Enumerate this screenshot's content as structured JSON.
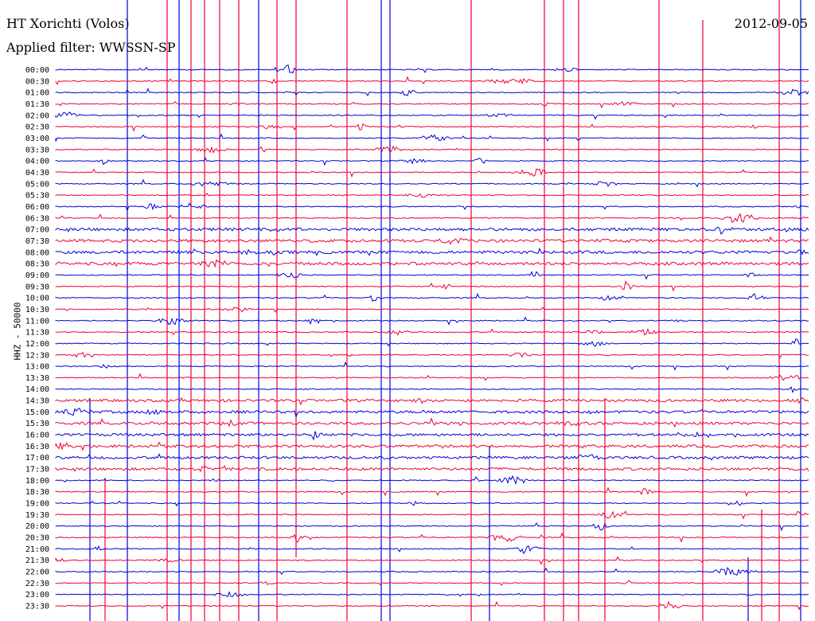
{
  "header": {
    "station": "HT Xorichti (Volos)",
    "date": "2012-09-05",
    "filter": "Applied filter: WWSSN-SP"
  },
  "channel_label": "HHZ - 50000",
  "time_labels": [
    "00:00",
    "00:30",
    "01:00",
    "01:30",
    "02:00",
    "02:30",
    "03:00",
    "03:30",
    "04:00",
    "04:30",
    "05:00",
    "05:30",
    "06:00",
    "06:30",
    "07:00",
    "07:30",
    "08:00",
    "08:30",
    "09:00",
    "09:30",
    "10:00",
    "10:30",
    "11:00",
    "11:30",
    "12:00",
    "12:30",
    "13:00",
    "13:30",
    "14:00",
    "14:30",
    "15:00",
    "15:30",
    "16:00",
    "16:30",
    "17:00",
    "17:30",
    "18:00",
    "18:30",
    "19:00",
    "19:30",
    "20:00",
    "20:30",
    "21:00",
    "21:30",
    "22:00",
    "22:30",
    "23:00",
    "23:30"
  ],
  "colors": {
    "even_trace": "#0000dd",
    "odd_trace": "#ee0033",
    "text": "#000000",
    "background": "#ffffff"
  }
}
